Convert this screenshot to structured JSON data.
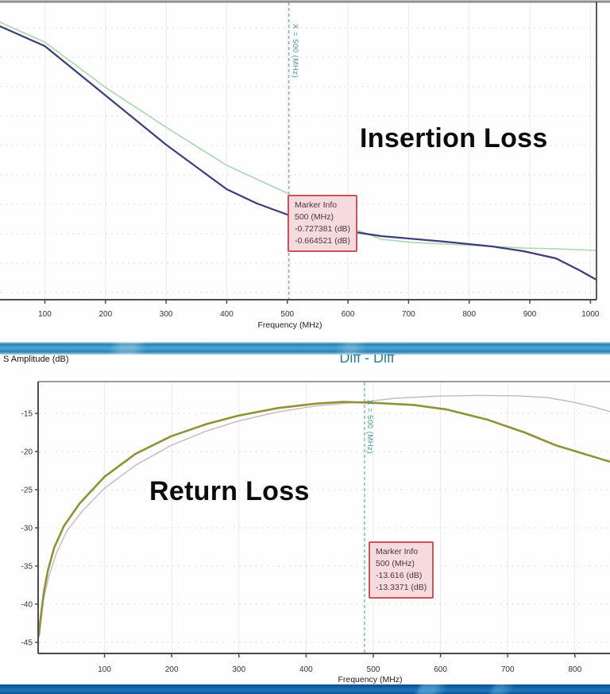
{
  "colors": {
    "trace_navy": "#3d3c7c",
    "trace_green": "#a9d7ae",
    "trace_olive": "#8f9334",
    "trace_pink": "#ccbac3",
    "marker_line": "#4a9b91",
    "marker_box_bg": "#f6dbde",
    "marker_box_border": "#c9545c",
    "band_blue": "#2a83b5",
    "header_teal": "#2f7e90"
  },
  "mid_band": {
    "title": "Diff - Diff",
    "axis_label": "S Amplitude (dB)"
  },
  "chart_data": [
    {
      "id": "insertion-loss",
      "type": "line",
      "title": "Insertion Loss",
      "xlabel": "Frequency (MHz)",
      "ylabel": "",
      "x_ticks": [
        100,
        200,
        300,
        400,
        500,
        600,
        700,
        800,
        900,
        1000
      ],
      "xlim": [
        26,
        1010
      ],
      "y_axis_visible": false,
      "y_unit": "screen_px",
      "grid": true,
      "legend": "none",
      "marker": {
        "label": "Marker Info",
        "x_text": "500 (MHz)",
        "values": [
          "-0.727381 (dB)",
          "-0.664521 (dB)"
        ],
        "x_line_label": "X = 500 (MHz)",
        "x_MHz": 500
      },
      "series": [
        {
          "name": "trace-green",
          "color": "#a9d7ae",
          "width": 1.6,
          "points": [
            [
              26,
              28
            ],
            [
              100,
              53
            ],
            [
              200,
              110
            ],
            [
              300,
              160
            ],
            [
              400,
              208
            ],
            [
              500,
              243
            ],
            [
              576,
              280
            ],
            [
              628,
              293
            ],
            [
              655,
              301
            ],
            [
              707,
              305
            ],
            [
              760,
              307
            ],
            [
              812,
              309
            ],
            [
              890,
              312
            ],
            [
              943,
              313
            ],
            [
              1010,
              315
            ]
          ]
        },
        {
          "name": "trace-navy",
          "color": "#3d3c7c",
          "width": 2.2,
          "points": [
            [
              26,
              33
            ],
            [
              100,
              58
            ],
            [
              200,
              120
            ],
            [
              300,
              182
            ],
            [
              400,
              238
            ],
            [
              450,
              256
            ],
            [
              500,
              270
            ],
            [
              576,
              288
            ],
            [
              655,
              297
            ],
            [
              760,
              304
            ],
            [
              838,
              310
            ],
            [
              890,
              316
            ],
            [
              943,
              325
            ],
            [
              982,
              340
            ],
            [
              1010,
              352
            ]
          ]
        }
      ]
    },
    {
      "id": "return-loss",
      "type": "line",
      "title": "Return Loss",
      "xlabel": "Frequency (MHz)",
      "ylabel": "S Amplitude (dB)",
      "x_ticks": [
        100,
        200,
        300,
        400,
        500,
        600,
        700,
        800
      ],
      "y_ticks": [
        -15,
        -20,
        -25,
        -30,
        -35,
        -40,
        -45
      ],
      "xlim": [
        2,
        852
      ],
      "ylim": [
        -46.5,
        -10.8
      ],
      "grid": true,
      "legend": "none",
      "marker": {
        "label": "Marker Info",
        "x_text": "500 (MHz)",
        "values": [
          "-13.616 (dB)",
          "-13.3371 (dB)"
        ],
        "x_line_label": "X = 500 (MHz)",
        "x_MHz": 500
      },
      "series": [
        {
          "name": "trace-pink",
          "color": "#ccbac3",
          "width": 1.5,
          "points": [
            [
              3,
              -44.3
            ],
            [
              9,
              -39.5
            ],
            [
              17,
              -36.4
            ],
            [
              29,
              -33.2
            ],
            [
              44,
              -30.4
            ],
            [
              68,
              -27.7
            ],
            [
              100,
              -24.8
            ],
            [
              146,
              -21.8
            ],
            [
              199,
              -19.2
            ],
            [
              252,
              -17.3
            ],
            [
              299,
              -16.0
            ],
            [
              358,
              -14.8
            ],
            [
              417,
              -14.0
            ],
            [
              500,
              -13.34
            ],
            [
              535,
              -13.0
            ],
            [
              595,
              -12.75
            ],
            [
              654,
              -12.65
            ],
            [
              713,
              -12.7
            ],
            [
              760,
              -12.95
            ],
            [
              796,
              -13.5
            ],
            [
              825,
              -14.1
            ],
            [
              852,
              -14.75
            ]
          ]
        },
        {
          "name": "trace-olive",
          "color": "#8f9334",
          "width": 2.6,
          "points": [
            [
              2,
              -44.0
            ],
            [
              6,
              -41.0
            ],
            [
              10,
              -38.2
            ],
            [
              16,
              -35.5
            ],
            [
              25,
              -32.6
            ],
            [
              40,
              -29.7
            ],
            [
              63,
              -26.8
            ],
            [
              100,
              -23.3
            ],
            [
              146,
              -20.3
            ],
            [
              199,
              -18.0
            ],
            [
              252,
              -16.4
            ],
            [
              299,
              -15.3
            ],
            [
              358,
              -14.3
            ],
            [
              417,
              -13.7
            ],
            [
              455,
              -13.5
            ],
            [
              500,
              -13.616
            ],
            [
              560,
              -13.9
            ],
            [
              610,
              -14.5
            ],
            [
              669,
              -15.8
            ],
            [
              725,
              -17.5
            ],
            [
              772,
              -19.2
            ],
            [
              851,
              -21.3
            ]
          ]
        }
      ]
    }
  ]
}
